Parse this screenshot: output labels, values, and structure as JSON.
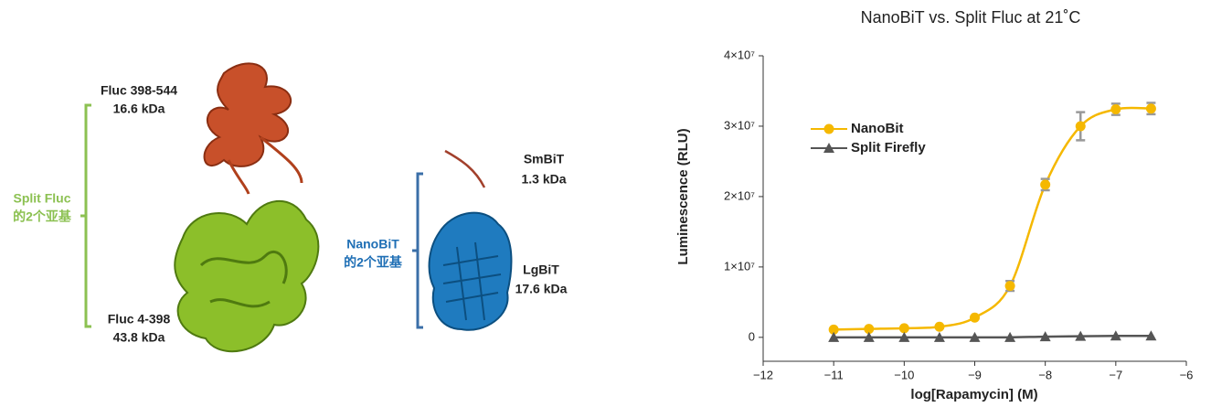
{
  "diagram": {
    "labels": {
      "fluc_small_name": "Fluc 398-544",
      "fluc_small_size": "16.6 kDa",
      "split_fluc": "Split Fluc",
      "split_fluc_sub": "的2个亚基",
      "fluc_large_name": "Fluc 4-398",
      "fluc_large_size": "43.8 kDa",
      "nanobit": "NanoBiT",
      "nanobit_sub": "的2个亚基",
      "smbit_name": "SmBiT",
      "smbit_size": "1.3 kDa",
      "lgbit_name": "LgBiT",
      "lgbit_size": "17.6 kDa"
    }
  },
  "chart_data": {
    "type": "line",
    "title": "NanoBiT vs. Split Fluc at 21˚C",
    "xlabel": "log[Rapamycin] (M)",
    "ylabel": "Luminescence (RLU)",
    "xlim": [
      -12,
      -6
    ],
    "xticks": [
      {
        "value": -12,
        "label": "−12"
      },
      {
        "value": -11,
        "label": "−11"
      },
      {
        "value": -10,
        "label": "−10"
      },
      {
        "value": -9,
        "label": "−9"
      },
      {
        "value": -8,
        "label": "−8"
      },
      {
        "value": -7,
        "label": "−7"
      },
      {
        "value": -6,
        "label": "−6"
      }
    ],
    "ylim": [
      -3400000,
      40000000
    ],
    "yticks": [
      0,
      {
        "value": 10000000,
        "label": "1×10⁷"
      },
      {
        "value": 20000000,
        "label": "2×10⁷"
      },
      {
        "value": 30000000,
        "label": "3×10⁷"
      },
      {
        "value": 40000000,
        "label": "4×10⁷"
      }
    ],
    "legend": "upper left",
    "x": [
      -11,
      -10.5,
      -10,
      -9.5,
      -9,
      -8.5,
      -8,
      -7.5,
      -7,
      -6.5
    ],
    "series": [
      {
        "name": "NanoBit",
        "color": "#f5b800",
        "marker": "circle",
        "values": [
          1100000,
          1200000,
          1300000,
          1500000,
          2800000,
          7300000,
          21700000,
          30000000,
          32400000,
          32500000
        ],
        "errors": [
          null,
          null,
          null,
          null,
          null,
          700000,
          800000,
          2000000,
          800000,
          800000
        ]
      },
      {
        "name": "Split Firefly",
        "color": "#555555",
        "marker": "triangle",
        "values": [
          0,
          0,
          0,
          0,
          0,
          0,
          100000,
          150000,
          200000,
          200000
        ]
      }
    ]
  }
}
